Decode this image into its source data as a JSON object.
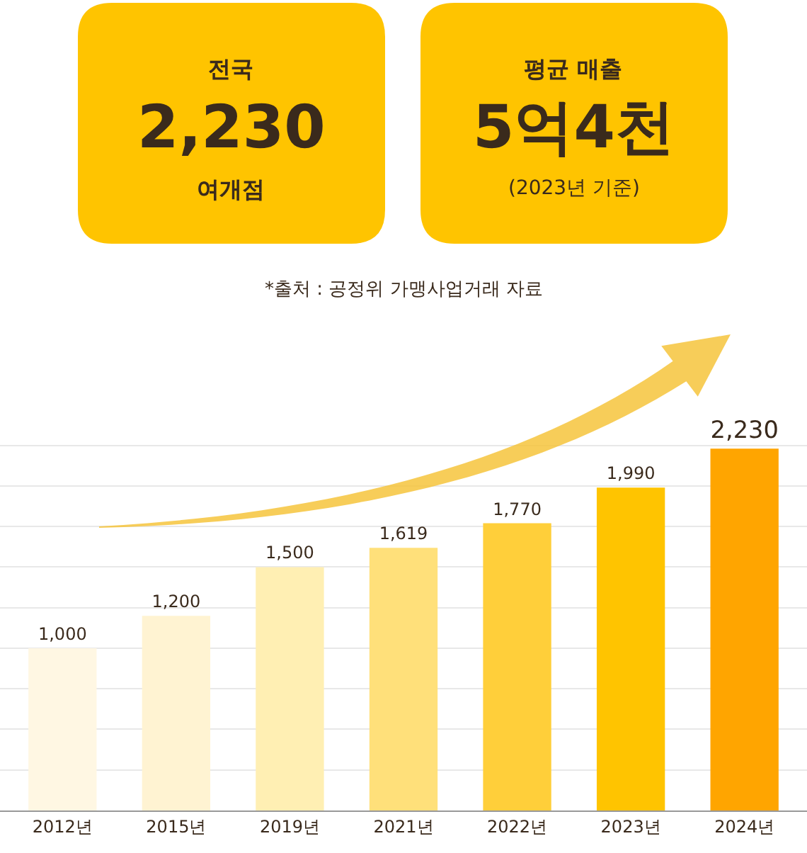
{
  "chart_data": {
    "type": "bar",
    "categories": [
      "2012년",
      "2015년",
      "2019년",
      "2021년",
      "2022년",
      "2023년",
      "2024년"
    ],
    "values": [
      1000,
      1200,
      1500,
      1619,
      1770,
      1990,
      2230
    ],
    "value_labels": [
      "1,000",
      "1,200",
      "1,500",
      "1,619",
      "1,770",
      "1,990",
      "2,230"
    ],
    "colors": [
      "#fff7e3",
      "#fff3d2",
      "#ffefb3",
      "#ffe07a",
      "#ffcf3a",
      "#ffc400",
      "#ffa500"
    ],
    "grid": "y",
    "tick_labels": "x",
    "annotations": [
      "전국",
      "2,230",
      "여개점",
      "평균 매출",
      "5억4천",
      "(2023년 기준)",
      "*출처 : 공정위 가맹사업거래 자료"
    ]
  }
}
